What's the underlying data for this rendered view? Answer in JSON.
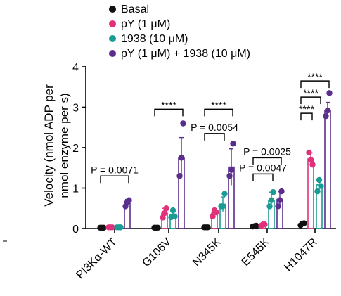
{
  "chart_data": {
    "type": "bar",
    "ylabel_lines": [
      "Velocity (nmol ADP per",
      "nmol enzyme per s)"
    ],
    "ylim": [
      0,
      4
    ],
    "yticks": [
      "0",
      "1",
      "2",
      "3",
      "4"
    ],
    "categories": [
      "PI3Kα-WT",
      "G106V",
      "N345K",
      "E545K",
      "H1047R"
    ],
    "legend_position": "top",
    "series": [
      {
        "name": "Basal",
        "color": "#111111",
        "values": [
          0.02,
          0.02,
          0.03,
          0.06,
          0.11
        ],
        "errors": [
          0.01,
          0.01,
          0.01,
          0.02,
          0.03
        ],
        "points": [
          [
            0.02,
            0.02,
            0.02
          ],
          [
            0.02,
            0.02,
            0.02
          ],
          [
            0.03,
            0.03,
            0.03
          ],
          [
            0.05,
            0.06,
            0.07
          ],
          [
            0.08,
            0.12,
            0.13
          ]
        ]
      },
      {
        "name": "pY (1 μM)",
        "color": "#e0327a",
        "values": [
          0.03,
          0.38,
          0.38,
          0.09,
          1.72
        ],
        "errors": [
          0.01,
          0.12,
          0.1,
          0.02,
          0.15
        ],
        "points": [
          [
            0.03,
            0.03,
            0.03
          ],
          [
            0.27,
            0.38,
            0.5
          ],
          [
            0.3,
            0.45,
            0.4
          ],
          [
            0.07,
            0.1,
            0.1
          ],
          [
            1.88,
            1.7,
            1.58
          ]
        ]
      },
      {
        "name": "1938 (10 μM)",
        "color": "#1a9b94",
        "values": [
          0.03,
          0.35,
          0.6,
          0.7,
          1.08
        ],
        "errors": [
          0.01,
          0.1,
          0.18,
          0.2,
          0.15
        ],
        "points": [
          [
            0.03,
            0.03,
            0.03
          ],
          [
            0.28,
            0.45,
            0.3
          ],
          [
            0.55,
            0.55,
            0.86
          ],
          [
            0.55,
            0.7,
            0.9
          ],
          [
            0.92,
            1.2,
            1.05
          ]
        ]
      },
      {
        "name": "pY (1 μM) + 1938 (10 μM)",
        "color": "#5b2d8c",
        "values": [
          0.62,
          1.75,
          1.52,
          0.72,
          2.92
        ],
        "errors": [
          0.1,
          0.5,
          0.45,
          0.2,
          0.2
        ],
        "points": [
          [
            0.55,
            0.65,
            0.7
          ],
          [
            1.3,
            1.75,
            2.6
          ],
          [
            1.3,
            1.45,
            2.1
          ],
          [
            0.55,
            0.7,
            0.92
          ],
          [
            2.78,
            2.92,
            3.35
          ]
        ]
      }
    ],
    "annotations": [
      {
        "group": 0,
        "from": 0,
        "to": 3,
        "text": "P = 0.0071",
        "y": 1.3
      },
      {
        "group": 1,
        "from": 0,
        "to": 3,
        "text": "****",
        "y": 2.95
      },
      {
        "group": 2,
        "from": 0,
        "to": 3,
        "text": "****",
        "y": 2.95
      },
      {
        "group": 2,
        "from": 0,
        "to": 2,
        "text": "P = 0.0054",
        "y": 2.35
      },
      {
        "group": 3,
        "from": 0,
        "to": 3,
        "text": "P = 0.0025",
        "y": 1.75
      },
      {
        "group": 3,
        "from": 0,
        "to": 2,
        "text": "P = 0.0047",
        "y": 1.35
      },
      {
        "group": 4,
        "from": 0,
        "to": 3,
        "text": "****",
        "y": 3.65
      },
      {
        "group": 4,
        "from": 0,
        "to": 2,
        "text": "****",
        "y": 3.25
      },
      {
        "group": 4,
        "from": 0,
        "to": 1,
        "text": "****",
        "y": 2.85
      }
    ]
  }
}
